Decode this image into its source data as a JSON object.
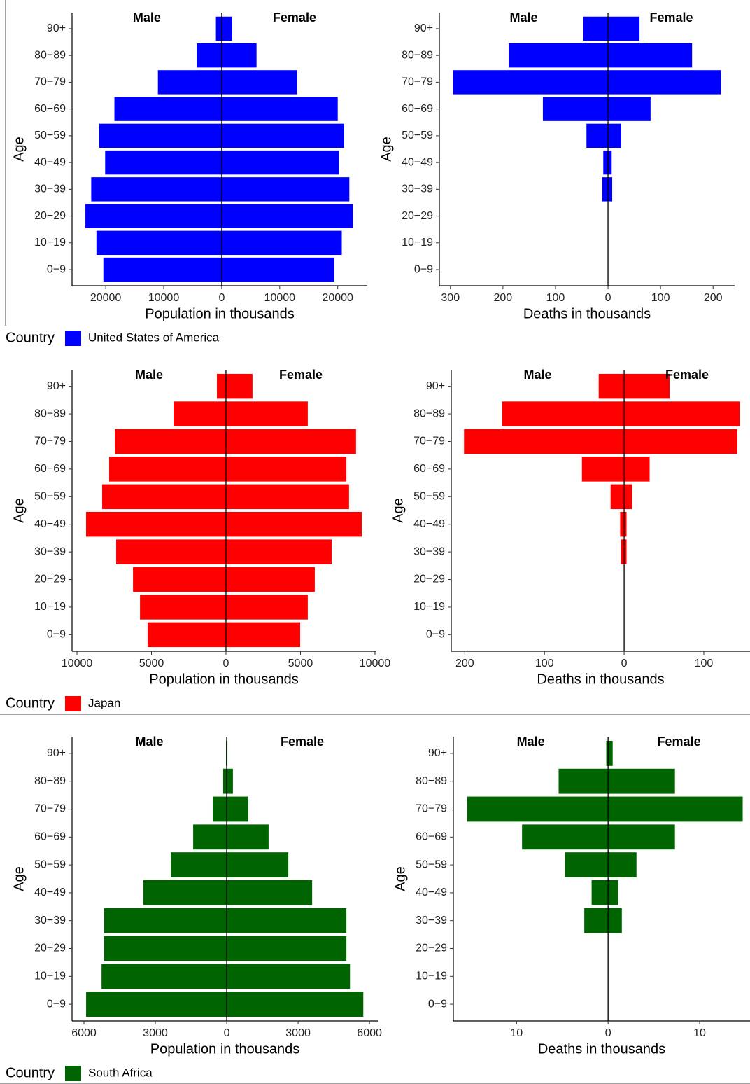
{
  "chart_data": [
    {
      "type": "pyramid",
      "x_label": "Population in thousands",
      "y_label": "Age",
      "color": "#0000ff",
      "categories": [
        "0−9",
        "10−19",
        "20−29",
        "30−39",
        "40−49",
        "50−59",
        "60−69",
        "70−79",
        "80−89",
        "90+"
      ],
      "series": [
        {
          "name": "Male",
          "values": [
            -20400,
            -21600,
            -23500,
            -22500,
            -20100,
            -21100,
            -18500,
            -11000,
            -4300,
            -1000
          ]
        },
        {
          "name": "Female",
          "values": [
            19400,
            20700,
            22600,
            22000,
            20200,
            21100,
            20000,
            13000,
            6000,
            1800
          ]
        }
      ],
      "xlim": [
        -25800,
        25100
      ],
      "xticks": [
        {
          "value": -20000,
          "label": "20000"
        },
        {
          "value": -10000,
          "label": "10000"
        },
        0,
        10000,
        20000
      ],
      "legend": {
        "title": "Country",
        "label": "United States of America"
      }
    },
    {
      "type": "pyramid",
      "x_label": "Deaths in thousands",
      "y_label": "Age",
      "color": "#0000ff",
      "categories": [
        "0−9",
        "10−19",
        "20−29",
        "30−39",
        "40−49",
        "50−59",
        "60−69",
        "70−79",
        "80−89",
        "90+"
      ],
      "series": [
        {
          "name": "Male",
          "values": [
            0,
            0,
            0,
            -11,
            -9,
            -41,
            -124,
            -295,
            -189,
            -47
          ]
        },
        {
          "name": "Female",
          "values": [
            0,
            0,
            0,
            8,
            7,
            25,
            81,
            215,
            160,
            60
          ]
        }
      ],
      "xlim": [
        -321,
        241
      ],
      "xticks": [
        {
          "value": -300,
          "label": "300"
        },
        {
          "value": -200,
          "label": "200"
        },
        {
          "value": -100,
          "label": "100"
        },
        0,
        100,
        200
      ]
    },
    {
      "type": "pyramid",
      "x_label": "Population in thousands",
      "y_label": "Age",
      "color": "#ff0000",
      "categories": [
        "0−9",
        "10−19",
        "20−29",
        "30−39",
        "40−49",
        "50−59",
        "60−69",
        "70−79",
        "80−89",
        "90+"
      ],
      "series": [
        {
          "name": "Male",
          "values": [
            -5260,
            -5770,
            -6240,
            -7370,
            -9390,
            -8310,
            -7840,
            -7460,
            -3520,
            -610
          ]
        },
        {
          "name": "Female",
          "values": [
            4980,
            5490,
            5960,
            7090,
            9110,
            8260,
            8080,
            8730,
            5490,
            1780
          ]
        }
      ],
      "xlim": [
        -10330,
        10050
      ],
      "xticks": [
        {
          "value": -10000,
          "label": "10000"
        },
        {
          "value": -5000,
          "label": "5000"
        },
        0,
        5000,
        10000
      ],
      "legend": {
        "title": "Country",
        "label": "Japan"
      }
    },
    {
      "type": "pyramid",
      "x_label": "Deaths in thousands",
      "y_label": "Age",
      "color": "#ff0000",
      "categories": [
        "0−9",
        "10−19",
        "20−29",
        "30−39",
        "40−49",
        "50−59",
        "60−69",
        "70−79",
        "80−89",
        "90+"
      ],
      "series": [
        {
          "name": "Male",
          "values": [
            0,
            0,
            0,
            -4,
            -5,
            -17,
            -53,
            -201,
            -153,
            -32
          ]
        },
        {
          "name": "Female",
          "values": [
            0,
            0,
            0,
            3,
            3,
            10,
            32,
            142,
            145,
            57
          ]
        }
      ],
      "xlim": [
        -217,
        158
      ],
      "xticks": [
        {
          "value": -200,
          "label": "200"
        },
        {
          "value": -100,
          "label": "100"
        },
        0,
        100
      ]
    },
    {
      "type": "pyramid",
      "x_label": "Population in thousands",
      "y_label": "Age",
      "color": "#006400",
      "categories": [
        "0−9",
        "10−19",
        "20−29",
        "30−39",
        "40−49",
        "50−59",
        "60−69",
        "70−79",
        "80−89",
        "90+"
      ],
      "series": [
        {
          "name": "Male",
          "values": [
            -5910,
            -5260,
            -5150,
            -5150,
            -3500,
            -2350,
            -1410,
            -590,
            -150,
            -30
          ]
        },
        {
          "name": "Female",
          "values": [
            5740,
            5180,
            5030,
            5030,
            3590,
            2590,
            1760,
            910,
            260,
            30
          ]
        }
      ],
      "xlim": [
        -6500,
        6350
      ],
      "xticks": [
        {
          "value": -6000,
          "label": "6000"
        },
        {
          "value": -3000,
          "label": "3000"
        },
        0,
        3000,
        6000
      ],
      "legend": {
        "title": "Country",
        "label": "South Africa"
      }
    },
    {
      "type": "pyramid",
      "x_label": "Deaths in thousands",
      "y_label": "Age",
      "color": "#006400",
      "categories": [
        "0−9",
        "10−19",
        "20−29",
        "30−39",
        "40−49",
        "50−59",
        "60−69",
        "70−79",
        "80−89",
        "90+"
      ],
      "series": [
        {
          "name": "Male",
          "values": [
            0,
            0,
            0,
            -2.6,
            -1.8,
            -4.7,
            -9.4,
            -15.4,
            -5.4,
            -0.2
          ]
        },
        {
          "name": "Female",
          "values": [
            0,
            0,
            0,
            1.5,
            1.1,
            3.1,
            7.3,
            14.7,
            7.3,
            0.5
          ]
        }
      ],
      "xlim": [
        -16.9,
        15.5
      ],
      "xticks": [
        {
          "value": -10,
          "label": "10"
        },
        0,
        10
      ]
    }
  ]
}
